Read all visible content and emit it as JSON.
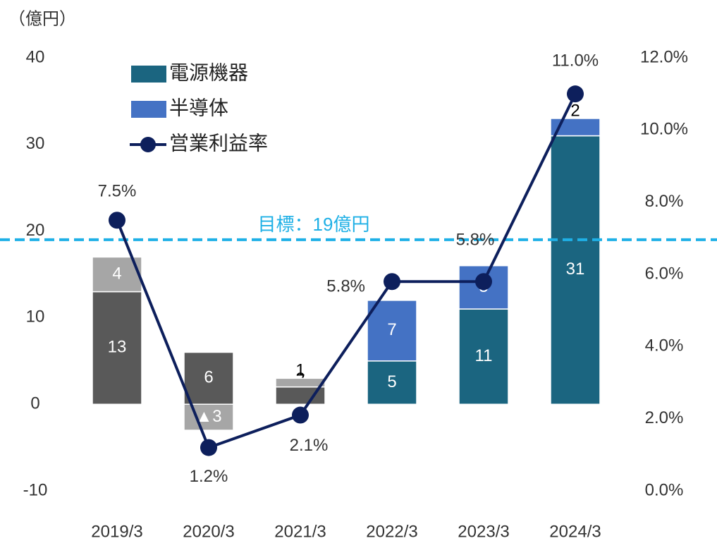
{
  "chart_data": {
    "type": "bar",
    "y_axis_label": "（億円）",
    "categories": [
      "2019/3",
      "2020/3",
      "2021/3",
      "2022/3",
      "2023/3",
      "2024/3"
    ],
    "series": [
      {
        "color": "#595959",
        "values": [
          13,
          6,
          2,
          null,
          null,
          null
        ]
      },
      {
        "color": "#a6a6a6",
        "values": [
          4,
          -3,
          1,
          null,
          null,
          null
        ],
        "value_labels": [
          "4",
          "▲3",
          "1",
          null,
          null,
          null
        ]
      },
      {
        "name": "電源機器",
        "color": "#1b6580",
        "values": [
          null,
          null,
          null,
          5,
          11,
          31
        ]
      },
      {
        "name": "半導体",
        "color": "#4472c4",
        "values": [
          null,
          null,
          null,
          7,
          5,
          2
        ]
      },
      {
        "name": "営業利益率",
        "type": "line",
        "axis": "y2",
        "color": "#0d1f5c",
        "values": [
          7.5,
          1.2,
          2.1,
          5.8,
          5.8,
          11.0
        ],
        "value_labels": [
          "7.5%",
          "1.2%",
          "2.1%",
          "5.8%",
          "5.8%",
          "11.0%"
        ]
      }
    ],
    "ylim": [
      -10,
      40
    ],
    "yticks": [
      -10,
      0,
      10,
      20,
      30,
      40
    ],
    "y2lim": [
      0,
      12
    ],
    "y2ticks": [
      {
        "value": 0,
        "label": "0.0%"
      },
      {
        "value": 2,
        "label": "2.0%"
      },
      {
        "value": 4,
        "label": "4.0%"
      },
      {
        "value": 6,
        "label": "6.0%"
      },
      {
        "value": 8,
        "label": "8.0%"
      },
      {
        "value": 10,
        "label": "10.0%"
      },
      {
        "value": 12,
        "label": "12.0%"
      }
    ],
    "target": {
      "label": "目標：19億円",
      "value": 19,
      "color": "#1fb0e6"
    },
    "legend": "upper left"
  }
}
